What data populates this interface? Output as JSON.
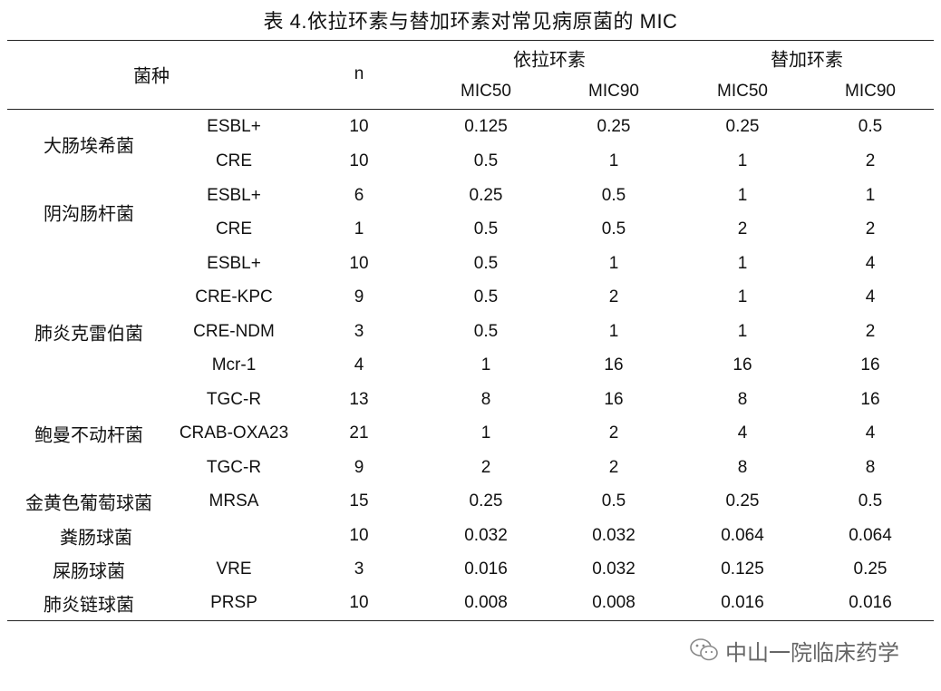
{
  "title": "表 4.依拉环素与替加环素对常见病原菌的 MIC",
  "header": {
    "species": "菌种",
    "n": "n",
    "drug_a": "依拉环素",
    "drug_b": "替加环素",
    "mic50": "MIC50",
    "mic90": "MIC90"
  },
  "groups": [
    {
      "name": "大肠埃希菌"
    },
    {
      "name": "阴沟肠杆菌"
    },
    {
      "name": "肺炎克雷伯菌"
    },
    {
      "name": "鲍曼不动杆菌"
    },
    {
      "name": "金黄色葡萄球菌"
    },
    {
      "name": "粪肠球菌"
    },
    {
      "name": "屎肠球菌"
    },
    {
      "name": "肺炎链球菌"
    }
  ],
  "rows": [
    {
      "sub": "ESBL+",
      "n": "10",
      "a50": "0.125",
      "a90": "0.25",
      "b50": "0.25",
      "b90": "0.5"
    },
    {
      "sub": "CRE",
      "n": "10",
      "a50": "0.5",
      "a90": "1",
      "b50": "1",
      "b90": "2"
    },
    {
      "sub": "ESBL+",
      "n": "6",
      "a50": "0.25",
      "a90": "0.5",
      "b50": "1",
      "b90": "1"
    },
    {
      "sub": "CRE",
      "n": "1",
      "a50": "0.5",
      "a90": "0.5",
      "b50": "2",
      "b90": "2"
    },
    {
      "sub": "ESBL+",
      "n": "10",
      "a50": "0.5",
      "a90": "1",
      "b50": "1",
      "b90": "4"
    },
    {
      "sub": "CRE-KPC",
      "n": "9",
      "a50": "0.5",
      "a90": "2",
      "b50": "1",
      "b90": "4"
    },
    {
      "sub": "CRE-NDM",
      "n": "3",
      "a50": "0.5",
      "a90": "1",
      "b50": "1",
      "b90": "2"
    },
    {
      "sub": "Mcr-1",
      "n": "4",
      "a50": "1",
      "a90": "16",
      "b50": "16",
      "b90": "16"
    },
    {
      "sub": "TGC-R",
      "n": "13",
      "a50": "8",
      "a90": "16",
      "b50": "8",
      "b90": "16"
    },
    {
      "sub": "CRAB-OXA23",
      "n": "21",
      "a50": "1",
      "a90": "2",
      "b50": "4",
      "b90": "4"
    },
    {
      "sub": "TGC-R",
      "n": "9",
      "a50": "2",
      "a90": "2",
      "b50": "8",
      "b90": "8"
    },
    {
      "sub": "MRSA",
      "n": "15",
      "a50": "0.25",
      "a90": "0.5",
      "b50": "0.25",
      "b90": "0.5"
    },
    {
      "sub": "",
      "n": "10",
      "a50": "0.032",
      "a90": "0.032",
      "b50": "0.064",
      "b90": "0.064"
    },
    {
      "sub": "VRE",
      "n": "3",
      "a50": "0.016",
      "a90": "0.032",
      "b50": "0.125",
      "b90": "0.25"
    },
    {
      "sub": "PRSP",
      "n": "10",
      "a50": "0.008",
      "a90": "0.008",
      "b50": "0.016",
      "b90": "0.016"
    }
  ],
  "watermark": {
    "text": "中山一院临床药学",
    "icon": "wechat-icon"
  }
}
